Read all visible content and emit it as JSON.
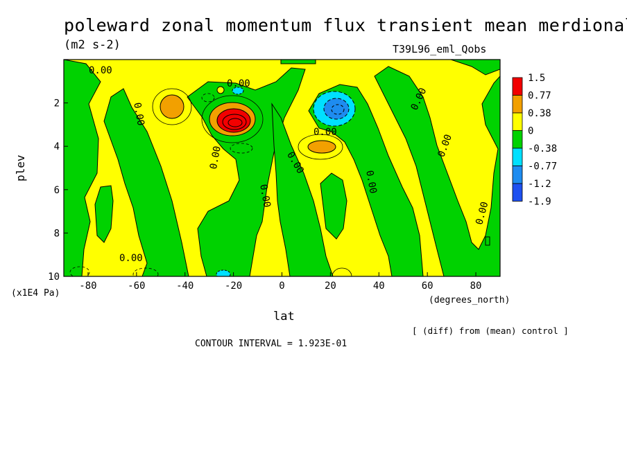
{
  "title": "poleward zonal momentum flux transient mean merdional",
  "units": "(m2 s-2)",
  "run_label": "T39L96_eml_Qobs",
  "diff_note": "[ (diff) from (mean) control ]",
  "contour_interval": "CONTOUR INTERVAL = 1.923E-01",
  "colors": {
    "red": "#f20000",
    "orange": "#f2a000",
    "yellow": "#ffff00",
    "green": "#00d200",
    "cyan": "#00e0ff",
    "blue": "#1e8cf0",
    "darkblue": "#1e50f0"
  },
  "chart_data": {
    "type": "heatmap",
    "title": "poleward zonal momentum flux transient mean merdional",
    "xlabel": "lat",
    "xunits": "(degrees_north)",
    "ylabel": "plev",
    "yunits": "(x1E4 Pa)",
    "xlim": [
      -90,
      90
    ],
    "ylim": [
      10,
      0
    ],
    "x_ticks": [
      -80,
      -60,
      -40,
      -20,
      0,
      20,
      40,
      60,
      80
    ],
    "y_ticks": [
      2,
      4,
      6,
      8,
      10
    ],
    "colorbar": {
      "levels": [
        "1.5",
        "0.77",
        "0.38",
        "0",
        "-0.38",
        "-0.77",
        "-1.2",
        "-1.9"
      ],
      "colors": [
        "#f20000",
        "#f2a000",
        "#ffff00",
        "#00d200",
        "#00e0ff",
        "#1e8cf0",
        "#1e50f0"
      ]
    },
    "contour_labels": [
      "0.00",
      "0.00",
      "0.00",
      "0.00",
      "0.00",
      "0.00",
      "0.00",
      "0.00",
      "0.00",
      "0.00",
      "0.00",
      "0.00"
    ],
    "features": [
      {
        "name": "positive max",
        "lat": -20,
        "plev": 2.9,
        "value": 1.5
      },
      {
        "name": "negative min",
        "lat": 22,
        "plev": 2.5,
        "value": -1.2
      },
      {
        "name": "secondary positive",
        "lat": -48,
        "plev": 2.3,
        "value": 0.77
      },
      {
        "name": "secondary positive",
        "lat": 17,
        "plev": 4.0,
        "value": 0.77
      }
    ]
  }
}
